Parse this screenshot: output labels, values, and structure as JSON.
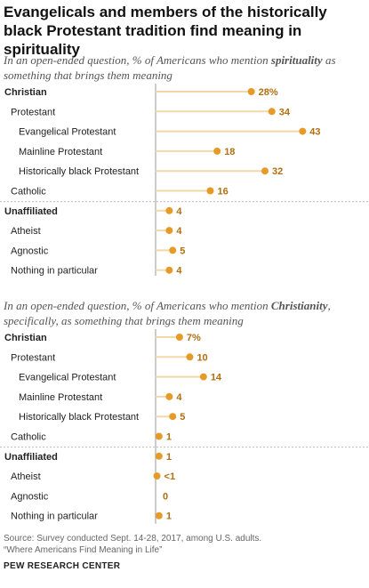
{
  "title": "Evangelicals and members of the historically black Protestant tradition find meaning in spirituality",
  "subtitle1": {
    "pre": "In an open-ended question, % of Americans who mention ",
    "term": "spirituality",
    "post": " as something that brings them meaning"
  },
  "subtitle2": {
    "pre": "In an open-ended question, % of Americans who mention ",
    "term": "Christianity",
    "post": ", specifically, as something that brings them meaning"
  },
  "colors": {
    "accent": "#e69a28",
    "stem": "#f2d8a8",
    "label_text": "#b06f10",
    "axis": "#999999",
    "divider": "#bbbbbb"
  },
  "chart_data": [
    {
      "type": "lollipop",
      "xlim": [
        0,
        45
      ],
      "categories": [
        "Christian",
        "Protestant",
        "Evangelical Protestant",
        "Mainline Protestant",
        "Historically black Protestant",
        "Catholic",
        "Unaffiliated",
        "Atheist",
        "Agnostic",
        "Nothing in particular"
      ],
      "levels": [
        0,
        1,
        2,
        2,
        2,
        1,
        0,
        1,
        1,
        1
      ],
      "bold": [
        true,
        false,
        false,
        false,
        false,
        false,
        true,
        false,
        false,
        false
      ],
      "values": [
        28,
        34,
        43,
        18,
        32,
        16,
        4,
        4,
        5,
        4
      ],
      "labels": [
        "28%",
        "34",
        "43",
        "18",
        "32",
        "16",
        "4",
        "4",
        "5",
        "4"
      ]
    },
    {
      "type": "lollipop",
      "xlim": [
        0,
        45
      ],
      "categories": [
        "Christian",
        "Protestant",
        "Evangelical Protestant",
        "Mainline Protestant",
        "Historically black Protestant",
        "Catholic",
        "Unaffiliated",
        "Atheist",
        "Agnostic",
        "Nothing in particular"
      ],
      "levels": [
        0,
        1,
        2,
        2,
        2,
        1,
        0,
        1,
        1,
        1
      ],
      "bold": [
        true,
        false,
        false,
        false,
        false,
        false,
        true,
        false,
        false,
        false
      ],
      "values": [
        7,
        10,
        14,
        4,
        5,
        1,
        1,
        0.4,
        0,
        1
      ],
      "labels": [
        "7%",
        "10",
        "14",
        "4",
        "5",
        "1",
        "1",
        "<1",
        "0",
        "1"
      ],
      "hidden_dot": [
        false,
        false,
        false,
        false,
        false,
        false,
        false,
        false,
        true,
        false
      ]
    }
  ],
  "footer": {
    "source": "Source: Survey conducted Sept. 14-28, 2017, among U.S. adults.",
    "report": "“Where Americans Find Meaning in Life”",
    "org": "PEW RESEARCH CENTER"
  }
}
